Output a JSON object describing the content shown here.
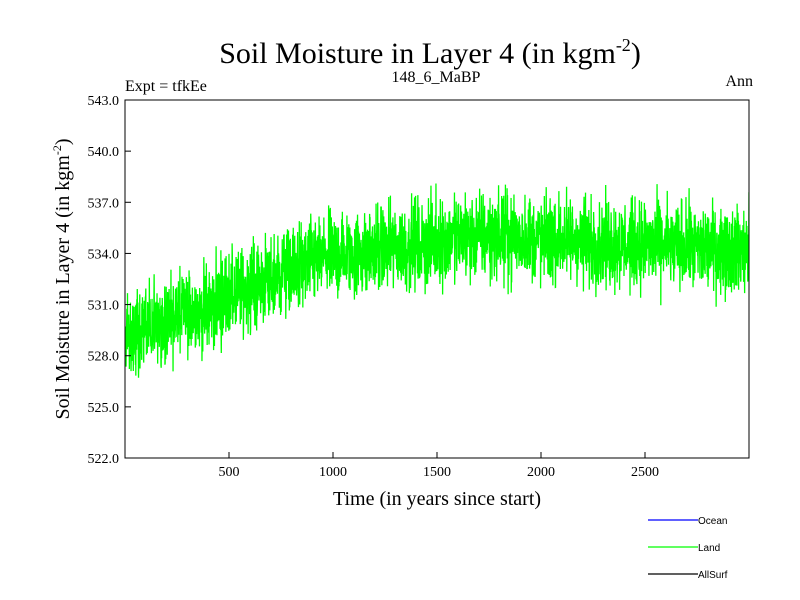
{
  "chart_data": {
    "type": "line",
    "title": "Soil Moisture in Layer 4 (in kgm",
    "title_sup": "-2",
    "title_end": ")",
    "subtitle_left": "Expt = tfkEe",
    "subtitle_center": "148_6_MaBP",
    "subtitle_right": "Ann",
    "xlabel": "Time (in years since start)",
    "ylabel": "Soil Moisture in Layer 4 (in kgm",
    "ylabel_sup": "-2",
    "ylabel_end": ")",
    "xlim": [
      0,
      3000
    ],
    "ylim": [
      522.0,
      543.0
    ],
    "xticks": [
      500,
      1000,
      1500,
      2000,
      2500
    ],
    "xtick_labels": [
      "500",
      "1000",
      "1500",
      "2000",
      "2500"
    ],
    "yticks": [
      522.0,
      525.0,
      528.0,
      531.0,
      534.0,
      537.0,
      540.0,
      543.0
    ],
    "ytick_labels": [
      "522.0",
      "525.0",
      "528.0",
      "531.0",
      "534.0",
      "537.0",
      "540.0",
      "543.0"
    ],
    "grid": false,
    "legend_position": "bottom-right",
    "legend": [
      {
        "name": "Ocean",
        "color": "#0000ff"
      },
      {
        "name": "Land",
        "color": "#00ff00"
      },
      {
        "name": "AllSurf",
        "color": "#000000"
      }
    ],
    "series": [
      {
        "name": "Land",
        "color": "#00ff00",
        "x": [
          0,
          50,
          100,
          150,
          200,
          250,
          300,
          350,
          400,
          450,
          500,
          550,
          600,
          650,
          700,
          750,
          800,
          850,
          900,
          950,
          1000,
          1050,
          1100,
          1150,
          1200,
          1250,
          1300,
          1350,
          1400,
          1450,
          1500,
          1550,
          1600,
          1650,
          1700,
          1750,
          1800,
          1850,
          1900,
          1950,
          2000,
          2050,
          2100,
          2150,
          2200,
          2250,
          2300,
          2350,
          2400,
          2450,
          2500,
          2550,
          2600,
          2650,
          2700,
          2750,
          2800,
          2850,
          2900,
          2950,
          3000
        ],
        "values": [
          529.5,
          529.0,
          529.5,
          529.8,
          530.0,
          530.3,
          530.5,
          530.6,
          530.8,
          531.2,
          531.5,
          531.7,
          532.0,
          532.2,
          532.4,
          532.8,
          533.0,
          533.2,
          533.5,
          533.7,
          533.8,
          533.9,
          534.0,
          534.1,
          534.2,
          534.2,
          534.3,
          534.4,
          534.5,
          534.6,
          534.7,
          534.8,
          534.9,
          535.0,
          535.0,
          535.0,
          535.0,
          535.0,
          534.9,
          534.9,
          534.8,
          534.8,
          534.8,
          534.8,
          534.7,
          534.7,
          534.6,
          534.6,
          534.5,
          534.5,
          534.5,
          534.5,
          534.4,
          534.4,
          534.4,
          534.3,
          534.3,
          534.3,
          534.3,
          534.2,
          534.2
        ],
        "noise_amplitude": 2.2
      }
    ]
  }
}
